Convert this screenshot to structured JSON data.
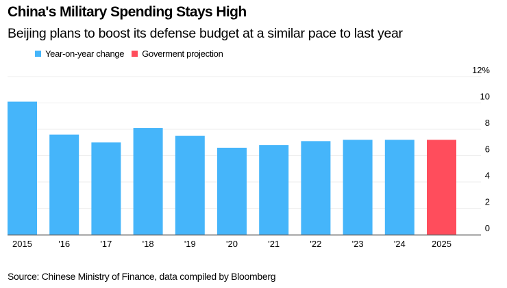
{
  "colors": {
    "series_blue": "#45b5fa",
    "series_red": "#ff4d5c",
    "grid": "#eeeeee",
    "baseline": "#666666"
  },
  "chart_data": {
    "type": "bar",
    "title": "China's Military Spending Stays High",
    "subtitle": "Beijing plans to boost its defense budget at a similar pace to last year",
    "categories": [
      "2015",
      "'16",
      "'17",
      "'18",
      "'19",
      "'20",
      "'21",
      "'22",
      "'23",
      "'24",
      "2025"
    ],
    "values": [
      10.1,
      7.6,
      7.0,
      8.1,
      7.5,
      6.6,
      6.8,
      7.1,
      7.2,
      7.2,
      7.2
    ],
    "series_of_bar": [
      "Year-on-year change",
      "Year-on-year change",
      "Year-on-year change",
      "Year-on-year change",
      "Year-on-year change",
      "Year-on-year change",
      "Year-on-year change",
      "Year-on-year change",
      "Year-on-year change",
      "Year-on-year change",
      "Goverment projection"
    ],
    "legend": [
      {
        "label": "Year-on-year change",
        "color": "#45b5fa"
      },
      {
        "label": "Goverment projection",
        "color": "#ff4d5c"
      }
    ],
    "legend_position": "top-left",
    "xlabel": "",
    "ylabel": "",
    "ylim": [
      0,
      12
    ],
    "yticks": [
      0,
      2,
      4,
      6,
      8,
      10,
      12
    ],
    "ytick_labels": [
      "0",
      "2",
      "4",
      "6",
      "8",
      "10",
      "12%"
    ],
    "y_axis_side": "right",
    "grid": true,
    "source": "Source: Chinese Ministry of Finance, data compiled by Bloomberg"
  }
}
